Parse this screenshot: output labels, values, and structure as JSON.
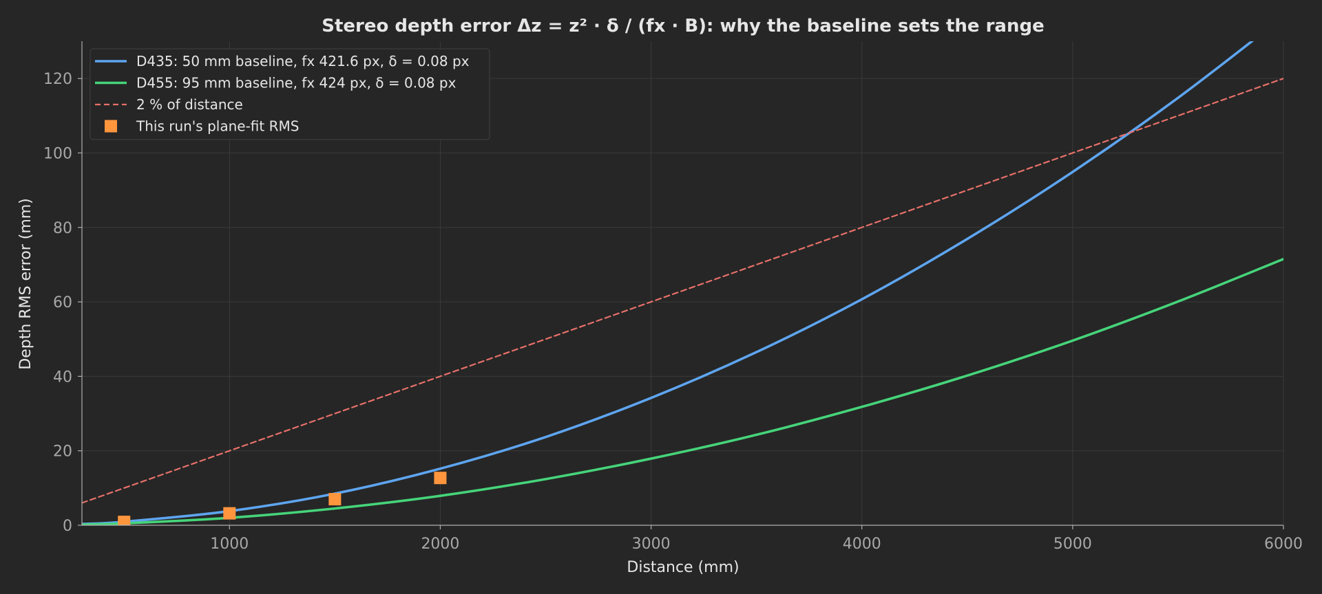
{
  "chart_data": {
    "type": "line",
    "title": "Stereo depth error Δz = z² · δ / (fx · B): why the baseline sets the range",
    "xlabel": "Distance (mm)",
    "ylabel": "Depth RMS error (mm)",
    "xlim": [
      300,
      6000
    ],
    "ylim": [
      0,
      130
    ],
    "xticks": [
      1000,
      2000,
      3000,
      4000,
      5000,
      6000
    ],
    "yticks": [
      0,
      20,
      40,
      60,
      80,
      100,
      120
    ],
    "grid": true,
    "legend_position": "top-left",
    "x": [
      300,
      500,
      1000,
      1500,
      2000,
      2500,
      3000,
      3500,
      4000,
      4500,
      5000,
      5500,
      6000
    ],
    "series": [
      {
        "name": "D435: 50 mm baseline, fx 421.6 px, δ = 0.08 px",
        "style": "solid",
        "color": "#5ea5f0",
        "values": [
          0.34,
          0.95,
          3.8,
          8.5,
          15.2,
          23.7,
          34.2,
          46.5,
          60.7,
          76.9,
          94.9,
          114.8,
          136.6
        ]
      },
      {
        "name": "D455: 95 mm baseline, fx 424 px, δ = 0.08 px",
        "style": "solid",
        "color": "#46d47a",
        "values": [
          0.18,
          0.5,
          2.0,
          4.5,
          7.9,
          12.4,
          17.9,
          24.3,
          31.8,
          40.2,
          49.6,
          60.1,
          71.5
        ]
      },
      {
        "name": "2 % of distance",
        "style": "dashed",
        "color": "#e8706a",
        "values": [
          6,
          10,
          20,
          30,
          40,
          50,
          60,
          70,
          80,
          90,
          100,
          110,
          120
        ]
      }
    ],
    "scatter": {
      "name": "This run's plane-fit RMS",
      "marker": "square",
      "color": "#ff963e",
      "x": [
        500,
        1000,
        1500,
        2000
      ],
      "y": [
        0.9,
        3.2,
        7.0,
        12.7
      ]
    }
  }
}
